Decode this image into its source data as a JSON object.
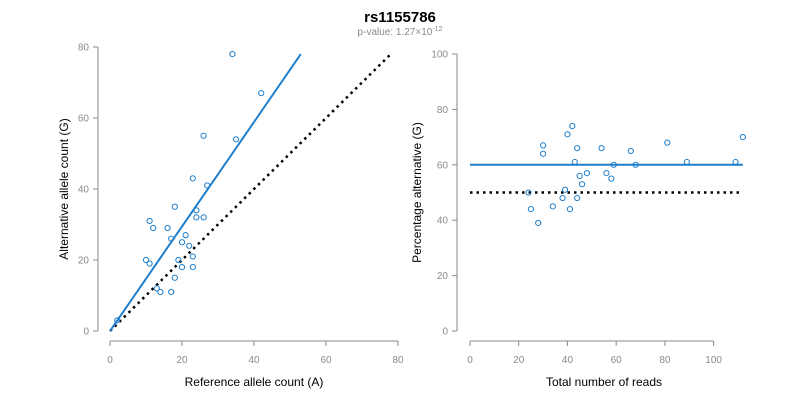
{
  "title": "rs1155786",
  "subtitle": {
    "prefix": "p-value: 1.27×10",
    "exponent": "-12"
  },
  "chart_data": [
    {
      "type": "scatter",
      "xlabel": "Reference allele count (A)",
      "ylabel": "Alternative allele count (G)",
      "xlim": [
        0,
        80
      ],
      "ylim": [
        0,
        80
      ],
      "xticks": [
        0,
        20,
        40,
        60,
        80
      ],
      "yticks": [
        0,
        20,
        40,
        60,
        80
      ],
      "grid": false,
      "points": [
        {
          "x": 2,
          "y": 3
        },
        {
          "x": 10,
          "y": 20
        },
        {
          "x": 11,
          "y": 19
        },
        {
          "x": 11,
          "y": 31
        },
        {
          "x": 12,
          "y": 29
        },
        {
          "x": 13,
          "y": 12
        },
        {
          "x": 14,
          "y": 11
        },
        {
          "x": 16,
          "y": 29
        },
        {
          "x": 17,
          "y": 11
        },
        {
          "x": 17,
          "y": 26
        },
        {
          "x": 18,
          "y": 15
        },
        {
          "x": 18,
          "y": 35
        },
        {
          "x": 19,
          "y": 20
        },
        {
          "x": 20,
          "y": 18
        },
        {
          "x": 20,
          "y": 25
        },
        {
          "x": 21,
          "y": 27
        },
        {
          "x": 22,
          "y": 24
        },
        {
          "x": 23,
          "y": 18
        },
        {
          "x": 23,
          "y": 21
        },
        {
          "x": 23,
          "y": 43
        },
        {
          "x": 24,
          "y": 34
        },
        {
          "x": 24,
          "y": 32
        },
        {
          "x": 26,
          "y": 32
        },
        {
          "x": 26,
          "y": 55
        },
        {
          "x": 27,
          "y": 41
        },
        {
          "x": 34,
          "y": 78
        },
        {
          "x": 35,
          "y": 54
        },
        {
          "x": 42,
          "y": 67
        }
      ],
      "fit_line": {
        "x": [
          0,
          53
        ],
        "y": [
          0,
          78
        ]
      },
      "reference_line": {
        "x": [
          0,
          78
        ],
        "y": [
          0,
          78
        ]
      }
    },
    {
      "type": "scatter",
      "xlabel": "Total number of reads",
      "ylabel": "Percentage alternative (G)",
      "xlim": [
        0,
        110
      ],
      "ylim": [
        0,
        100
      ],
      "xticks": [
        0,
        20,
        40,
        60,
        80,
        100
      ],
      "yticks": [
        0,
        20,
        40,
        60,
        80,
        100
      ],
      "grid": false,
      "points": [
        {
          "x": 24,
          "y": 50
        },
        {
          "x": 25,
          "y": 44
        },
        {
          "x": 28,
          "y": 39
        },
        {
          "x": 30,
          "y": 64
        },
        {
          "x": 30,
          "y": 67
        },
        {
          "x": 34,
          "y": 45
        },
        {
          "x": 38,
          "y": 48
        },
        {
          "x": 39,
          "y": 51
        },
        {
          "x": 40,
          "y": 71
        },
        {
          "x": 41,
          "y": 44
        },
        {
          "x": 42,
          "y": 74
        },
        {
          "x": 43,
          "y": 61
        },
        {
          "x": 44,
          "y": 48
        },
        {
          "x": 44,
          "y": 66
        },
        {
          "x": 45,
          "y": 56
        },
        {
          "x": 46,
          "y": 53
        },
        {
          "x": 48,
          "y": 57
        },
        {
          "x": 54,
          "y": 66
        },
        {
          "x": 56,
          "y": 57
        },
        {
          "x": 58,
          "y": 55
        },
        {
          "x": 59,
          "y": 60
        },
        {
          "x": 66,
          "y": 65
        },
        {
          "x": 68,
          "y": 60
        },
        {
          "x": 81,
          "y": 68
        },
        {
          "x": 89,
          "y": 61
        },
        {
          "x": 109,
          "y": 61
        },
        {
          "x": 112,
          "y": 70
        }
      ],
      "fit_line": {
        "x": [
          0,
          112
        ],
        "y": [
          60,
          60
        ]
      },
      "reference_line": {
        "x": [
          0,
          112
        ],
        "y": [
          50,
          50
        ]
      }
    }
  ]
}
